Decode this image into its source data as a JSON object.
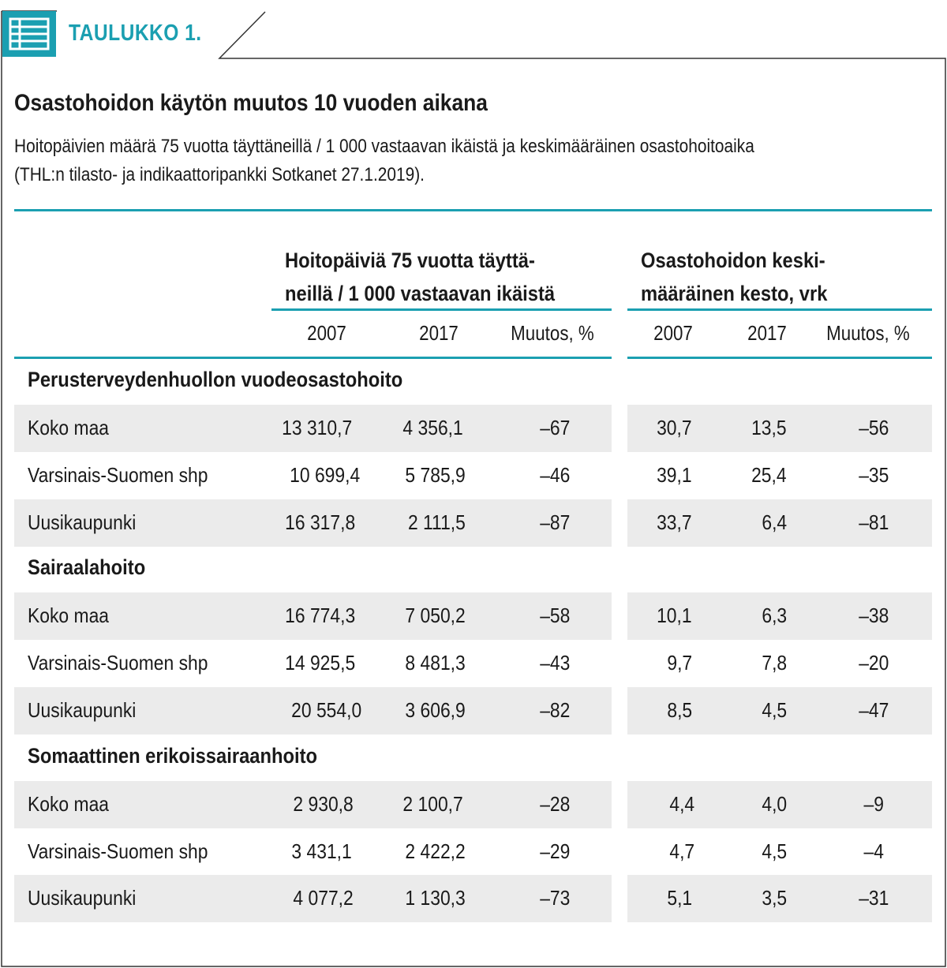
{
  "header": {
    "tab_label": "TAULUKKO 1.",
    "title": "Osastohoidon käytön muutos 10 vuoden aikana",
    "subtitle_line1": "Hoitopäivien määrä 75 vuotta täyttäneillä / 1 000 vastaavan ikäistä ja keskimääräinen osastohoitoaika",
    "subtitle_line2": "(THL:n tilasto- ja indikaattoripankki Sotkanet 27.1.2019)."
  },
  "colors": {
    "accent": "#1b9fb1",
    "row_shade": "#ebebeb"
  },
  "icon": "table-icon",
  "table": {
    "group1_line1": "Hoitopäiviä 75 vuotta täyttä-",
    "group1_line2": "neillä / 1 000 vastaavan ikäistä",
    "group2_line1": "Osastohoidon keski-",
    "group2_line2": "määräinen kesto, vrk",
    "subheaders": [
      "2007",
      "2017",
      "Muutos, %",
      "2007",
      "2017",
      "Muutos, %"
    ],
    "sections": [
      {
        "title": "Perusterveydenhuollon vuodeosastohoito",
        "rows": [
          {
            "label": "Koko maa",
            "values": [
              "13 310,7",
              "4 356,1",
              "–67",
              "30,7",
              "13,5",
              "–56"
            ]
          },
          {
            "label": "Varsinais-Suomen shp",
            "values": [
              "10 699,4",
              "5 785,9",
              "–46",
              "39,1",
              "25,4",
              "–35"
            ]
          },
          {
            "label": "Uusikaupunki",
            "values": [
              "16 317,8",
              "2 111,5",
              "–87",
              "33,7",
              "6,4",
              "–81"
            ]
          }
        ]
      },
      {
        "title": "Sairaalahoito",
        "rows": [
          {
            "label": "Koko maa",
            "values": [
              "16 774,3",
              "7 050,2",
              "–58",
              "10,1",
              "6,3",
              "–38"
            ]
          },
          {
            "label": "Varsinais-Suomen shp",
            "values": [
              "14 925,5",
              "8 481,3",
              "–43",
              "9,7",
              "7,8",
              "–20"
            ]
          },
          {
            "label": "Uusikaupunki",
            "values": [
              "20 554,0",
              "3 606,9",
              "–82",
              "8,5",
              "4,5",
              "–47"
            ]
          }
        ]
      },
      {
        "title": "Somaattinen erikoissairaanhoito",
        "rows": [
          {
            "label": "Koko maa",
            "values": [
              "2 930,8",
              "2 100,7",
              "–28",
              "4,4",
              "4,0",
              "–9"
            ]
          },
          {
            "label": "Varsinais-Suomen shp",
            "values": [
              "3 431,1",
              "2 422,2",
              "–29",
              "4,7",
              "4,5",
              "–4"
            ]
          },
          {
            "label": "Uusikaupunki",
            "values": [
              "4 077,2",
              "1 130,3",
              "–73",
              "5,1",
              "3,5",
              "–31"
            ]
          }
        ]
      }
    ]
  }
}
